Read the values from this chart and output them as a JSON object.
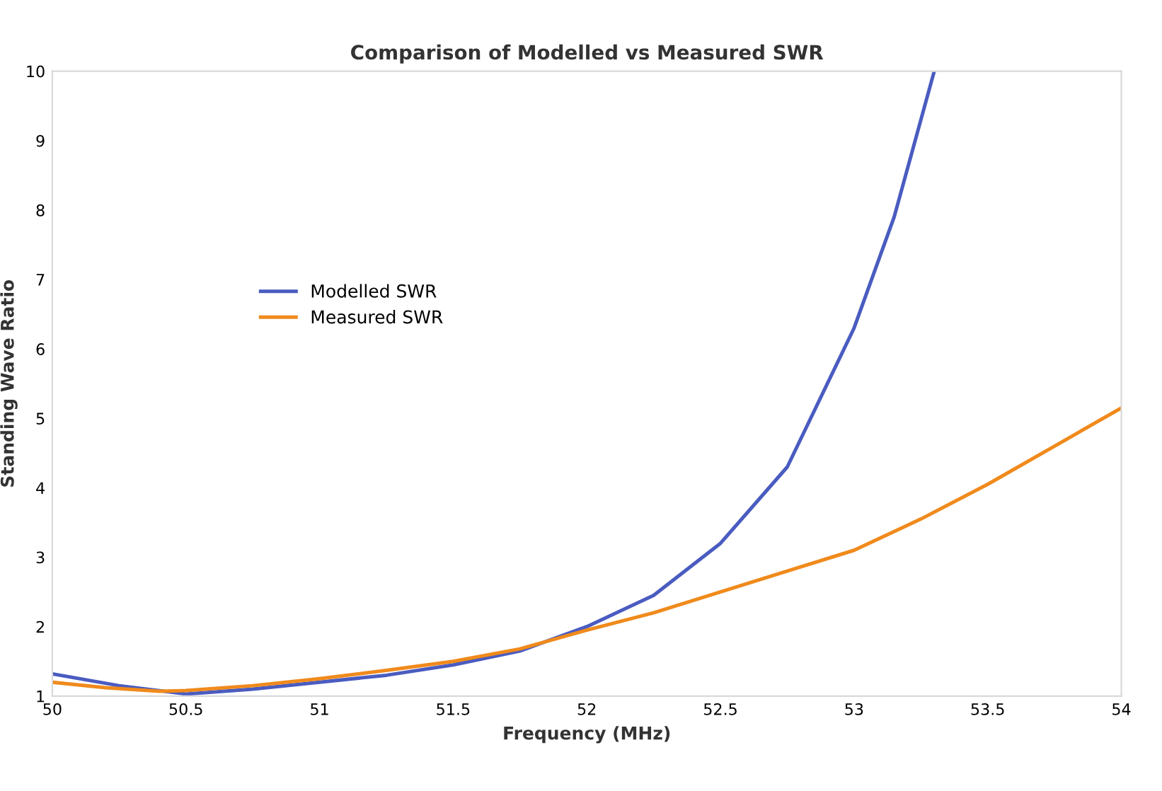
{
  "chart_data": {
    "type": "line",
    "title": "Comparison of Modelled vs Measured SWR",
    "xlabel": "Frequency (MHz)",
    "ylabel": "Standing Wave Ratio",
    "xlim": [
      50,
      54
    ],
    "xticks": [
      50,
      50.5,
      51,
      51.5,
      52,
      52.5,
      53,
      53.5,
      54
    ],
    "ylim": [
      1,
      10
    ],
    "yticks": [
      1,
      2,
      3,
      4,
      5,
      6,
      7,
      8,
      9,
      10
    ],
    "grid": false,
    "legend": "center left",
    "marker": "none",
    "line_style": "solid",
    "series": [
      {
        "name": "Modelled SWR",
        "color": "#4a5cc0",
        "x": [
          50,
          50.25,
          50.5,
          50.75,
          51,
          51.25,
          51.5,
          51.75,
          52,
          52.25,
          52.5,
          52.75,
          53,
          53.15,
          53.3
        ],
        "values": [
          1.32,
          1.15,
          1.03,
          1.1,
          1.2,
          1.3,
          1.45,
          1.65,
          2.0,
          2.45,
          3.2,
          4.3,
          6.3,
          7.9,
          10
        ]
      },
      {
        "name": "Measured SWR",
        "color": "#f08a1c",
        "x": [
          50,
          50.2,
          50.4,
          50.5,
          50.75,
          51,
          51.25,
          51.5,
          51.75,
          52,
          52.25,
          52.5,
          52.75,
          53,
          53.25,
          53.5,
          53.75,
          54
        ],
        "values": [
          1.2,
          1.12,
          1.07,
          1.08,
          1.15,
          1.25,
          1.37,
          1.5,
          1.68,
          1.95,
          2.2,
          2.5,
          2.8,
          3.1,
          3.55,
          4.05,
          4.6,
          5.15
        ]
      }
    ]
  }
}
